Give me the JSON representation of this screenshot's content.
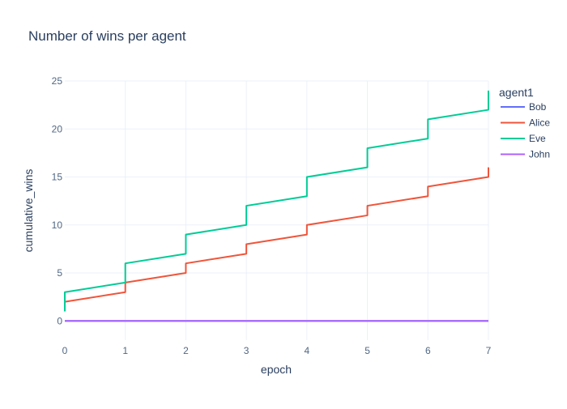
{
  "chart_data": {
    "type": "line",
    "line_shape": "step",
    "title": "Number of wins per agent",
    "xlabel": "epoch",
    "ylabel": "cumulative_wins",
    "xlim": [
      0,
      7
    ],
    "ylim": [
      -2,
      25
    ],
    "x_ticks": [
      0,
      1,
      2,
      3,
      4,
      5,
      6,
      7
    ],
    "y_ticks": [
      0,
      5,
      10,
      15,
      20,
      25
    ],
    "grid": true,
    "legend_title": "agent1",
    "legend_position": "right",
    "series": [
      {
        "name": "Bob",
        "color": "#636efa",
        "points": [
          [
            0,
            0
          ],
          [
            7,
            0
          ]
        ]
      },
      {
        "name": "Alice",
        "color": "#ef553b",
        "points": [
          [
            0,
            1
          ],
          [
            0,
            2
          ],
          [
            1,
            3
          ],
          [
            1,
            4
          ],
          [
            2,
            5
          ],
          [
            2,
            6
          ],
          [
            3,
            7
          ],
          [
            3,
            8
          ],
          [
            4,
            9
          ],
          [
            4,
            10
          ],
          [
            5,
            11
          ],
          [
            5,
            12
          ],
          [
            6,
            13
          ],
          [
            6,
            14
          ],
          [
            7,
            15
          ],
          [
            7,
            16
          ]
        ]
      },
      {
        "name": "Eve",
        "color": "#00cc96",
        "points": [
          [
            0,
            1
          ],
          [
            0,
            3
          ],
          [
            1,
            4
          ],
          [
            1,
            6
          ],
          [
            2,
            7
          ],
          [
            2,
            9
          ],
          [
            3,
            10
          ],
          [
            3,
            12
          ],
          [
            4,
            13
          ],
          [
            4,
            15
          ],
          [
            5,
            16
          ],
          [
            5,
            18
          ],
          [
            6,
            19
          ],
          [
            6,
            21
          ],
          [
            7,
            22
          ],
          [
            7,
            24
          ]
        ]
      },
      {
        "name": "John",
        "color": "#ab63fa",
        "points": [
          [
            0,
            0
          ],
          [
            7,
            0
          ]
        ]
      }
    ]
  }
}
